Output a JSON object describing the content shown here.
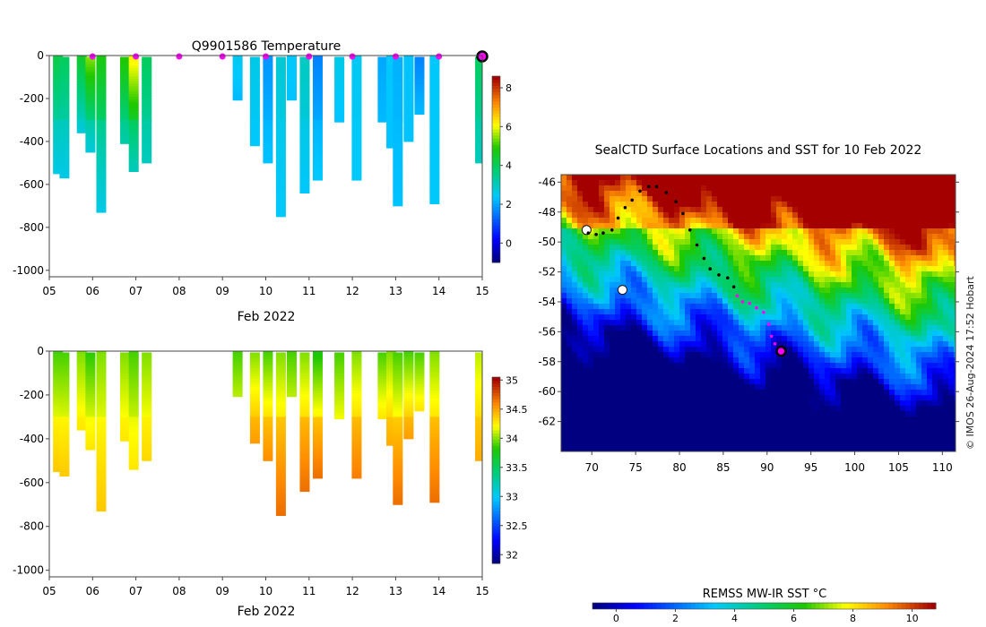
{
  "chart_data": [
    {
      "id": "temperature",
      "type": "heatmap",
      "title": "Q9901586  Temperature",
      "xlabel": "Feb 2022",
      "ylabel": "",
      "x_ticks": [
        "05",
        "06",
        "07",
        "08",
        "09",
        "10",
        "11",
        "12",
        "13",
        "14",
        "15"
      ],
      "xlim": [
        5,
        15
      ],
      "ylim": [
        -1030,
        0
      ],
      "y_ticks": [
        0,
        -200,
        -400,
        -600,
        -800,
        -1000
      ],
      "colorbar": {
        "ticks": [
          0,
          2,
          4,
          6,
          8
        ],
        "range": [
          -1,
          8.6
        ]
      },
      "surface_markers_day": [
        6,
        7,
        8,
        9,
        10,
        11,
        12,
        13,
        14
      ],
      "current_position_day": 15,
      "profiles": [
        {
          "day": 5.2,
          "max_depth": 545,
          "surface_value": 4.2,
          "deep_value": 2.6
        },
        {
          "day": 5.35,
          "max_depth": 570,
          "surface_value": 4.0,
          "deep_value": 2.6
        },
        {
          "day": 5.75,
          "max_depth": 360,
          "surface_value": 4.5,
          "deep_value": 2.7
        },
        {
          "day": 5.95,
          "max_depth": 445,
          "surface_value": 5.5,
          "deep_value": 2.7
        },
        {
          "day": 6.2,
          "max_depth": 725,
          "surface_value": 4.8,
          "deep_value": 2.6
        },
        {
          "day": 6.75,
          "max_depth": 405,
          "surface_value": 5.0,
          "deep_value": 3.2
        },
        {
          "day": 6.95,
          "max_depth": 540,
          "surface_value": 6.3,
          "deep_value": 3.0
        },
        {
          "day": 7.25,
          "max_depth": 500,
          "surface_value": 4.0,
          "deep_value": 3.0
        },
        {
          "day": 9.35,
          "max_depth": 200,
          "surface_value": 2.5,
          "deep_value": 2.2
        },
        {
          "day": 9.75,
          "max_depth": 415,
          "surface_value": 2.6,
          "deep_value": 2.4
        },
        {
          "day": 10.05,
          "max_depth": 500,
          "surface_value": 1.8,
          "deep_value": 2.3
        },
        {
          "day": 10.35,
          "max_depth": 750,
          "surface_value": 2.8,
          "deep_value": 2.4
        },
        {
          "day": 10.6,
          "max_depth": 200,
          "surface_value": 2.4,
          "deep_value": 2.3
        },
        {
          "day": 10.9,
          "max_depth": 640,
          "surface_value": 3.0,
          "deep_value": 2.4
        },
        {
          "day": 11.2,
          "max_depth": 580,
          "surface_value": 1.6,
          "deep_value": 2.4
        },
        {
          "day": 11.7,
          "max_depth": 300,
          "surface_value": 2.6,
          "deep_value": 2.3
        },
        {
          "day": 12.1,
          "max_depth": 580,
          "surface_value": 2.5,
          "deep_value": 2.4
        },
        {
          "day": 12.7,
          "max_depth": 300,
          "surface_value": 2.0,
          "deep_value": 2.2
        },
        {
          "day": 12.9,
          "max_depth": 425,
          "surface_value": 2.4,
          "deep_value": 2.3
        },
        {
          "day": 13.05,
          "max_depth": 700,
          "surface_value": 2.1,
          "deep_value": 2.3
        },
        {
          "day": 13.3,
          "max_depth": 400,
          "surface_value": 2.3,
          "deep_value": 2.3
        },
        {
          "day": 13.55,
          "max_depth": 260,
          "surface_value": 1.6,
          "deep_value": 2.2
        },
        {
          "day": 13.9,
          "max_depth": 690,
          "surface_value": 2.4,
          "deep_value": 2.4
        },
        {
          "day": 14.95,
          "max_depth": 500,
          "surface_value": 4.0,
          "deep_value": 3.0
        }
      ]
    },
    {
      "id": "salinity",
      "type": "heatmap",
      "title": "",
      "xlabel": "Feb 2022",
      "ylabel": "",
      "x_ticks": [
        "05",
        "06",
        "07",
        "08",
        "09",
        "10",
        "11",
        "12",
        "13",
        "14",
        "15"
      ],
      "xlim": [
        5,
        15
      ],
      "ylim": [
        -1030,
        0
      ],
      "y_ticks": [
        0,
        -200,
        -400,
        -600,
        -800,
        -1000
      ],
      "colorbar": {
        "ticks": [
          32,
          32.5,
          33,
          33.5,
          34,
          34.5,
          35
        ],
        "range": [
          31.85,
          35.05
        ]
      },
      "profiles": [
        {
          "day": 5.2,
          "max_depth": 545,
          "surface_value": 33.9,
          "deep_value": 34.4
        },
        {
          "day": 5.35,
          "max_depth": 570,
          "surface_value": 33.9,
          "deep_value": 34.4
        },
        {
          "day": 5.75,
          "max_depth": 360,
          "surface_value": 34.0,
          "deep_value": 34.3
        },
        {
          "day": 5.95,
          "max_depth": 445,
          "surface_value": 33.85,
          "deep_value": 34.3
        },
        {
          "day": 6.2,
          "max_depth": 725,
          "surface_value": 34.0,
          "deep_value": 34.4
        },
        {
          "day": 6.75,
          "max_depth": 405,
          "surface_value": 34.0,
          "deep_value": 34.3
        },
        {
          "day": 6.95,
          "max_depth": 540,
          "surface_value": 33.9,
          "deep_value": 34.3
        },
        {
          "day": 7.25,
          "max_depth": 500,
          "surface_value": 34.0,
          "deep_value": 34.35
        },
        {
          "day": 9.35,
          "max_depth": 200,
          "surface_value": 33.9,
          "deep_value": 34.1
        },
        {
          "day": 9.75,
          "max_depth": 415,
          "surface_value": 34.0,
          "deep_value": 34.55
        },
        {
          "day": 10.05,
          "max_depth": 500,
          "surface_value": 33.9,
          "deep_value": 34.6
        },
        {
          "day": 10.35,
          "max_depth": 750,
          "surface_value": 34.0,
          "deep_value": 34.7
        },
        {
          "day": 10.6,
          "max_depth": 200,
          "surface_value": 33.9,
          "deep_value": 34.1
        },
        {
          "day": 10.9,
          "max_depth": 640,
          "surface_value": 34.0,
          "deep_value": 34.7
        },
        {
          "day": 11.2,
          "max_depth": 580,
          "surface_value": 33.8,
          "deep_value": 34.7
        },
        {
          "day": 11.7,
          "max_depth": 300,
          "surface_value": 33.9,
          "deep_value": 34.2
        },
        {
          "day": 12.1,
          "max_depth": 580,
          "surface_value": 34.0,
          "deep_value": 34.65
        },
        {
          "day": 12.7,
          "max_depth": 300,
          "surface_value": 33.9,
          "deep_value": 34.3
        },
        {
          "day": 12.9,
          "max_depth": 425,
          "surface_value": 34.0,
          "deep_value": 34.5
        },
        {
          "day": 13.05,
          "max_depth": 700,
          "surface_value": 33.9,
          "deep_value": 34.7
        },
        {
          "day": 13.3,
          "max_depth": 400,
          "surface_value": 33.9,
          "deep_value": 34.55
        },
        {
          "day": 13.55,
          "max_depth": 260,
          "surface_value": 33.9,
          "deep_value": 34.3
        },
        {
          "day": 13.9,
          "max_depth": 690,
          "surface_value": 34.0,
          "deep_value": 34.7
        },
        {
          "day": 14.95,
          "max_depth": 500,
          "surface_value": 34.1,
          "deep_value": 34.5
        }
      ]
    },
    {
      "id": "sst_map",
      "type": "heatmap",
      "title": "SealCTD Surface Locations and SST for 10 Feb 2022",
      "xlabel": "",
      "ylabel": "",
      "x_ticks": [
        70,
        75,
        80,
        85,
        90,
        95,
        100,
        105,
        110
      ],
      "y_ticks": [
        -46,
        -48,
        -50,
        -52,
        -54,
        -56,
        -58,
        -60,
        -62
      ],
      "xlim": [
        66.5,
        111.5
      ],
      "ylim": [
        -64,
        -45.5
      ],
      "colorbar": {
        "title": "REMSS MW-IR SST °C",
        "ticks": [
          0,
          2,
          4,
          6,
          8,
          10
        ],
        "range": [
          -0.8,
          10.8
        ]
      },
      "track": [
        [
          69.6,
          -49.4
        ],
        [
          70.5,
          -49.5
        ],
        [
          71.3,
          -49.4
        ],
        [
          72.3,
          -49.2
        ],
        [
          73.0,
          -48.4
        ],
        [
          73.8,
          -47.7
        ],
        [
          74.6,
          -47.2
        ],
        [
          75.5,
          -46.6
        ],
        [
          76.5,
          -46.3
        ],
        [
          77.4,
          -46.3
        ],
        [
          78.5,
          -46.7
        ],
        [
          79.6,
          -47.3
        ],
        [
          80.4,
          -48.1
        ],
        [
          81.2,
          -49.2
        ],
        [
          82.0,
          -50.2
        ],
        [
          82.8,
          -51.1
        ],
        [
          83.5,
          -51.8
        ],
        [
          84.5,
          -52.2
        ],
        [
          85.5,
          -52.4
        ],
        [
          86.2,
          -53.0
        ],
        [
          86.6,
          -53.6
        ],
        [
          87.2,
          -54.0
        ],
        [
          88.0,
          -54.1
        ],
        [
          88.8,
          -54.4
        ],
        [
          89.6,
          -54.7
        ],
        [
          90.2,
          -55.5
        ],
        [
          90.5,
          -56.3
        ],
        [
          90.9,
          -56.8
        ],
        [
          91.6,
          -57.3
        ]
      ],
      "highlighted_from_index": 20,
      "current_position": [
        91.6,
        -57.3
      ],
      "land_points": [
        [
          69.4,
          -49.2
        ],
        [
          73.5,
          -53.2
        ]
      ]
    }
  ],
  "footer": {
    "copyright": "© IMOS 26-Aug-2024 17:52 Hobart"
  }
}
